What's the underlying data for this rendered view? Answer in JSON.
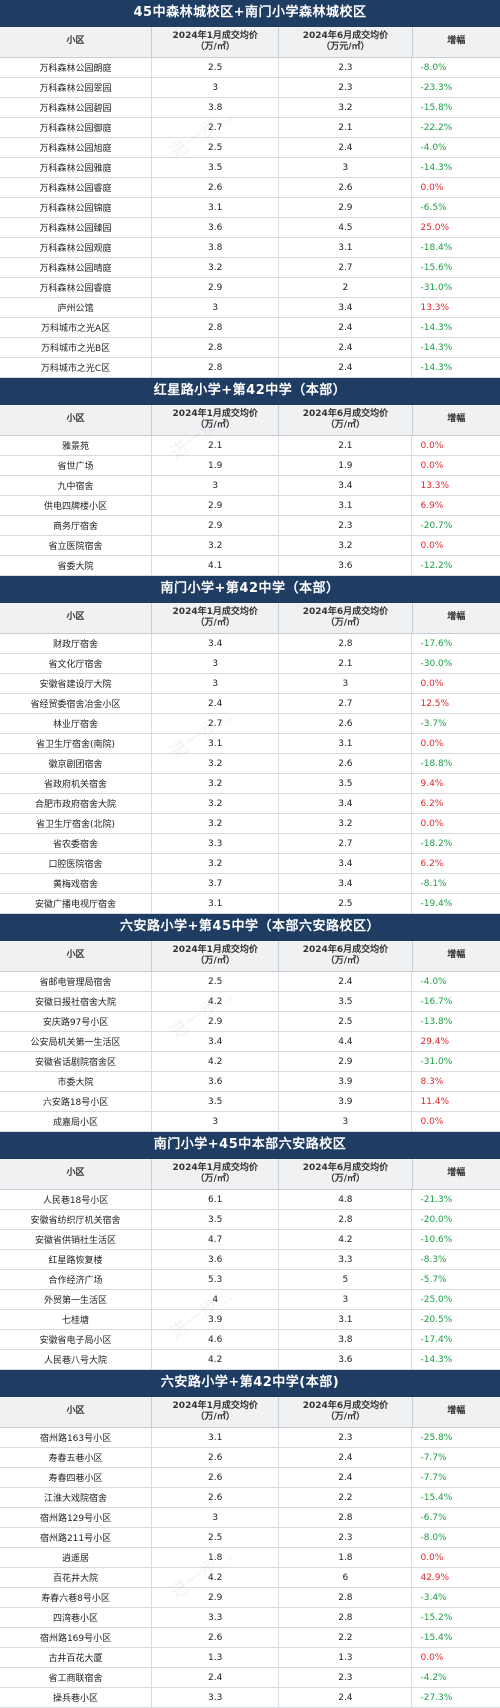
{
  "columns": [
    "小区",
    "2024年1月成交均价\n（万/㎡）",
    "2024年6月成交均价\n（万元/㎡）",
    "增幅"
  ],
  "watermark": "进一步...",
  "sections": [
    {
      "title": "45中森林城校区+南门小学森林城校区",
      "headers": [
        "小区",
        "2024年1月成交均价\n（万/㎡）",
        "2024年6月成交均价\n（万元/㎡）",
        "增幅"
      ],
      "rows": [
        {
          "name": "万科森林公园朗庭",
          "jan": "2.5",
          "jun": "2.3",
          "change": "-8.0%"
        },
        {
          "name": "万科森林公园翠园",
          "jan": "3",
          "jun": "2.3",
          "change": "-23.3%"
        },
        {
          "name": "万科森林公园碧园",
          "jan": "3.8",
          "jun": "3.2",
          "change": "-15.8%"
        },
        {
          "name": "万科森林公园御庭",
          "jan": "2.7",
          "jun": "2.1",
          "change": "-22.2%"
        },
        {
          "name": "万科森林公园旭庭",
          "jan": "2.5",
          "jun": "2.4",
          "change": "-4.0%"
        },
        {
          "name": "万科森林公园雅庭",
          "jan": "3.5",
          "jun": "3",
          "change": "-14.3%"
        },
        {
          "name": "万科森林公园睿庭",
          "jan": "2.6",
          "jun": "2.6",
          "change": "0.0%"
        },
        {
          "name": "万科森林公园锦庭",
          "jan": "3.1",
          "jun": "2.9",
          "change": "-6.5%"
        },
        {
          "name": "万科森林公园臻园",
          "jan": "3.6",
          "jun": "4.5",
          "change": "25.0%"
        },
        {
          "name": "万科森林公园观庭",
          "jan": "3.8",
          "jun": "3.1",
          "change": "-18.4%"
        },
        {
          "name": "万科森林公园晴庭",
          "jan": "3.2",
          "jun": "2.7",
          "change": "-15.6%"
        },
        {
          "name": "万科森林公园睿庭",
          "jan": "2.9",
          "jun": "2",
          "change": "-31.0%"
        },
        {
          "name": "庐州公馆",
          "jan": "3",
          "jun": "3.4",
          "change": "13.3%"
        },
        {
          "name": "万科城市之光A区",
          "jan": "2.8",
          "jun": "2.4",
          "change": "-14.3%"
        },
        {
          "name": "万科城市之光B区",
          "jan": "2.8",
          "jun": "2.4",
          "change": "-14.3%"
        },
        {
          "name": "万科城市之光C区",
          "jan": "2.8",
          "jun": "2.4",
          "change": "-14.3%"
        }
      ]
    },
    {
      "title": "红星路小学+第42中学（本部）",
      "headers": [
        "小区",
        "2024年1月成交均价\n（万/㎡）",
        "2024年6月成交均价\n（万/㎡）",
        "增幅"
      ],
      "rows": [
        {
          "name": "雅景苑",
          "jan": "2.1",
          "jun": "2.1",
          "change": "0.0%"
        },
        {
          "name": "省世广场",
          "jan": "1.9",
          "jun": "1.9",
          "change": "0.0%"
        },
        {
          "name": "九中宿舍",
          "jan": "3",
          "jun": "3.4",
          "change": "13.3%"
        },
        {
          "name": "供电四牌楼小区",
          "jan": "2.9",
          "jun": "3.1",
          "change": "6.9%"
        },
        {
          "name": "商务厅宿舍",
          "jan": "2.9",
          "jun": "2.3",
          "change": "-20.7%"
        },
        {
          "name": "省立医院宿舍",
          "jan": "3.2",
          "jun": "3.2",
          "change": "0.0%"
        },
        {
          "name": "省委大院",
          "jan": "4.1",
          "jun": "3.6",
          "change": "-12.2%"
        }
      ]
    },
    {
      "title": "南门小学+第42中学（本部）",
      "headers": [
        "小区",
        "2024年1月成交均价\n（万/㎡）",
        "2024年6月成交均价\n（万/㎡）",
        "增幅"
      ],
      "rows": [
        {
          "name": "财政厅宿舍",
          "jan": "3.4",
          "jun": "2.8",
          "change": "-17.6%"
        },
        {
          "name": "省文化厅宿舍",
          "jan": "3",
          "jun": "2.1",
          "change": "-30.0%"
        },
        {
          "name": "安徽省建设厅大院",
          "jan": "3",
          "jun": "3",
          "change": "0.0%"
        },
        {
          "name": "省经贸委宿舍冶金小区",
          "jan": "2.4",
          "jun": "2.7",
          "change": "12.5%"
        },
        {
          "name": "林业厅宿舍",
          "jan": "2.7",
          "jun": "2.6",
          "change": "-3.7%"
        },
        {
          "name": "省卫生厅宿舍(南院)",
          "jan": "3.1",
          "jun": "3.1",
          "change": "0.0%"
        },
        {
          "name": "徽京剧团宿舍",
          "jan": "3.2",
          "jun": "2.6",
          "change": "-18.8%"
        },
        {
          "name": "省政府机关宿舍",
          "jan": "3.2",
          "jun": "3.5",
          "change": "9.4%"
        },
        {
          "name": "合肥市政府宿舍大院",
          "jan": "3.2",
          "jun": "3.4",
          "change": "6.2%"
        },
        {
          "name": "省卫生厅宿舍(北院)",
          "jan": "3.2",
          "jun": "3.2",
          "change": "0.0%"
        },
        {
          "name": "省农委宿舍",
          "jan": "3.3",
          "jun": "2.7",
          "change": "-18.2%"
        },
        {
          "name": "口腔医院宿舍",
          "jan": "3.2",
          "jun": "3.4",
          "change": "6.2%"
        },
        {
          "name": "黄梅戏宿舍",
          "jan": "3.7",
          "jun": "3.4",
          "change": "-8.1%"
        },
        {
          "name": "安徽广播电视厅宿舍",
          "jan": "3.1",
          "jun": "2.5",
          "change": "-19.4%"
        }
      ]
    },
    {
      "title": "六安路小学+第45中学（本部六安路校区）",
      "headers": [
        "小区",
        "2024年1月成交均价\n（万/㎡）",
        "2024年6月成交均价\n（万/㎡）",
        "增幅"
      ],
      "rows": [
        {
          "name": "省邮电管理局宿舍",
          "jan": "2.5",
          "jun": "2.4",
          "change": "-4.0%"
        },
        {
          "name": "安徽日报社宿舍大院",
          "jan": "4.2",
          "jun": "3.5",
          "change": "-16.7%"
        },
        {
          "name": "安庆路97号小区",
          "jan": "2.9",
          "jun": "2.5",
          "change": "-13.8%"
        },
        {
          "name": "公安局机关第一生活区",
          "jan": "3.4",
          "jun": "4.4",
          "change": "29.4%"
        },
        {
          "name": "安徽省话剧院宿舍区",
          "jan": "4.2",
          "jun": "2.9",
          "change": "-31.0%"
        },
        {
          "name": "市委大院",
          "jan": "3.6",
          "jun": "3.9",
          "change": "8.3%"
        },
        {
          "name": "六安路18号小区",
          "jan": "3.5",
          "jun": "3.9",
          "change": "11.4%"
        },
        {
          "name": "成嘉局小区",
          "jan": "3",
          "jun": "3",
          "change": "0.0%"
        }
      ]
    },
    {
      "title": "南门小学+45中本部六安路校区",
      "headers": [
        "小区",
        "2024年1月成交均价\n（万/㎡）",
        "2024年6月成交均价\n（万/㎡）",
        "增幅"
      ],
      "rows": [
        {
          "name": "人民巷18号小区",
          "jan": "6.1",
          "jun": "4.8",
          "change": "-21.3%"
        },
        {
          "name": "安徽省纺织厅机关宿舍",
          "jan": "3.5",
          "jun": "2.8",
          "change": "-20.0%"
        },
        {
          "name": "安徽省供销社生活区",
          "jan": "4.7",
          "jun": "4.2",
          "change": "-10.6%"
        },
        {
          "name": "红星路恢复楼",
          "jan": "3.6",
          "jun": "3.3",
          "change": "-8.3%"
        },
        {
          "name": "合作经济广场",
          "jan": "5.3",
          "jun": "5",
          "change": "-5.7%"
        },
        {
          "name": "外贸第一生活区",
          "jan": "4",
          "jun": "3",
          "change": "-25.0%"
        },
        {
          "name": "七桂塘",
          "jan": "3.9",
          "jun": "3.1",
          "change": "-20.5%"
        },
        {
          "name": "安徽省电子局小区",
          "jan": "4.6",
          "jun": "3.8",
          "change": "-17.4%"
        },
        {
          "name": "人民巷八号大院",
          "jan": "4.2",
          "jun": "3.6",
          "change": "-14.3%"
        }
      ]
    },
    {
      "title": "六安路小学+第42中学(本部)",
      "headers": [
        "小区",
        "2024年1月成交均价\n（万/㎡）",
        "2024年6月成交均价\n（万/㎡）",
        "增幅"
      ],
      "rows": [
        {
          "name": "宿州路163号小区",
          "jan": "3.1",
          "jun": "2.3",
          "change": "-25.8%"
        },
        {
          "name": "寿春五巷小区",
          "jan": "2.6",
          "jun": "2.4",
          "change": "-7.7%"
        },
        {
          "name": "寿春四巷小区",
          "jan": "2.6",
          "jun": "2.4",
          "change": "-7.7%"
        },
        {
          "name": "江淮大戏院宿舍",
          "jan": "2.6",
          "jun": "2.2",
          "change": "-15.4%"
        },
        {
          "name": "宿州路129号小区",
          "jan": "3",
          "jun": "2.8",
          "change": "-6.7%"
        },
        {
          "name": "宿州路211号小区",
          "jan": "2.5",
          "jun": "2.3",
          "change": "-8.0%"
        },
        {
          "name": "逍遥居",
          "jan": "1.8",
          "jun": "1.8",
          "change": "0.0%"
        },
        {
          "name": "百花井大院",
          "jan": "4.2",
          "jun": "6",
          "change": "42.9%"
        },
        {
          "name": "寿春六巷8号小区",
          "jan": "2.9",
          "jun": "2.8",
          "change": "-3.4%"
        },
        {
          "name": "四湾巷小区",
          "jan": "3.3",
          "jun": "2.8",
          "change": "-15.2%"
        },
        {
          "name": "宿州路169号小区",
          "jan": "2.6",
          "jun": "2.2",
          "change": "-15.4%"
        },
        {
          "name": "古井百花大厦",
          "jan": "1.3",
          "jun": "1.3",
          "change": "0.0%"
        },
        {
          "name": "省工商联宿舍",
          "jan": "2.4",
          "jun": "2.3",
          "change": "-4.2%"
        },
        {
          "name": "操兵巷小区",
          "jan": "3.3",
          "jun": "2.4",
          "change": "-27.3%"
        }
      ]
    }
  ]
}
